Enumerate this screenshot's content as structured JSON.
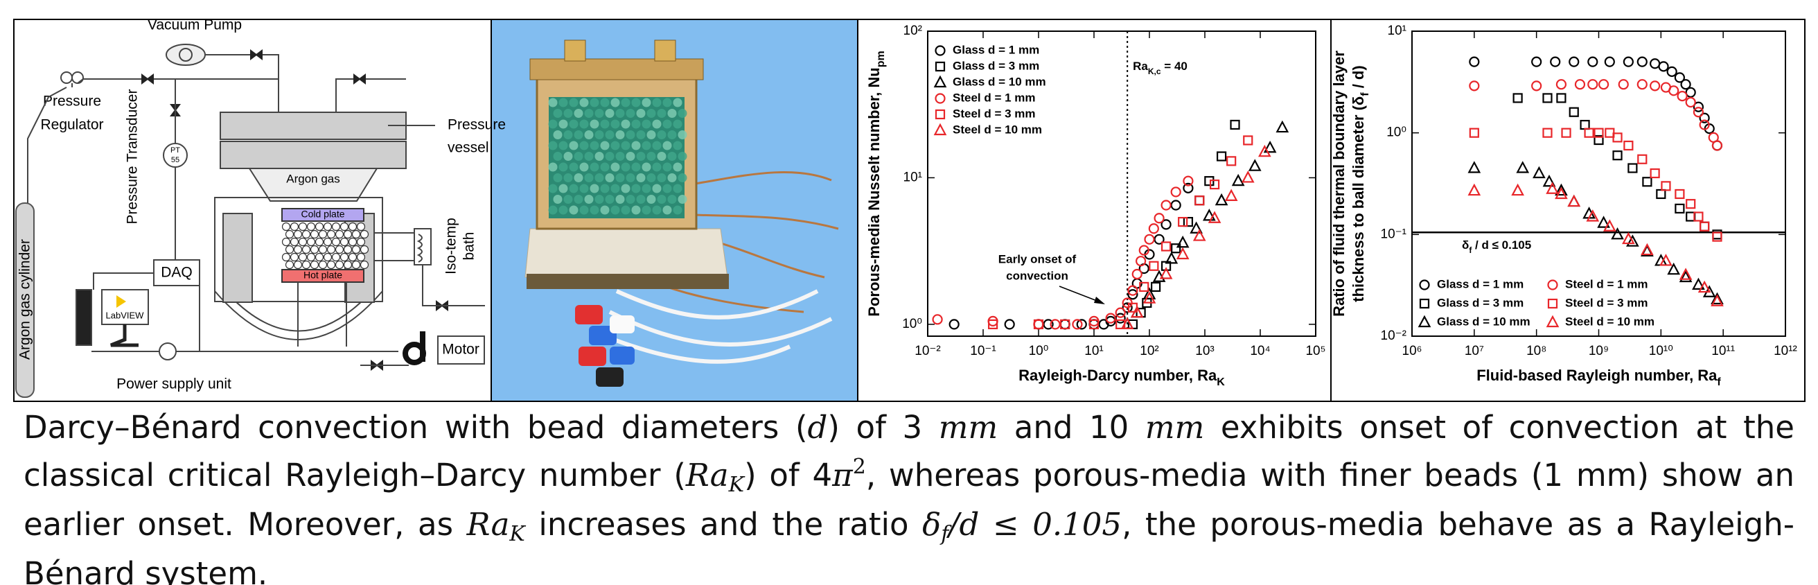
{
  "diagram": {
    "vacuum_pump": "Vacuum Pump",
    "pressure_regulator": [
      "Pressure",
      "Regulator"
    ],
    "pressure_transducer": "Pressure Transducer",
    "pt": [
      "PT",
      "55"
    ],
    "pressure_vessel": [
      "Pressure",
      "vessel"
    ],
    "argon_gas": "Argon gas",
    "cold_plate": "Cold plate",
    "hot_plate": "Hot plate",
    "iso_temp_bath": [
      "Iso-temp",
      "bath"
    ],
    "daq": "DAQ",
    "labview": "LabVIEW",
    "motor": "Motor",
    "power_supply": "Power supply unit",
    "argon_cylinder": "Argon gas cylinder"
  },
  "chart_data": [
    {
      "type": "scatter",
      "xscale": "log",
      "yscale": "log",
      "xlabel": [
        [
          {
            "text": "Rayleigh-Darcy number, Ra"
          },
          {
            "text": "K",
            "style": "sub"
          }
        ]
      ],
      "ylabel": [
        [
          {
            "text": "Porous-media Nusselt number, Nu"
          },
          {
            "text": "pm",
            "style": "sub"
          }
        ]
      ],
      "xlim": [
        0.01,
        100000
      ],
      "ylim": [
        0.83,
        100
      ],
      "xticks": [
        {
          "value": 0.01,
          "label": "10⁻²"
        },
        {
          "value": 0.1,
          "label": "10⁻¹"
        },
        {
          "value": 1,
          "label": "10⁰"
        },
        {
          "value": 10,
          "label": "10¹"
        },
        {
          "value": 100,
          "label": "10²"
        },
        {
          "value": 1000,
          "label": "10³"
        },
        {
          "value": 10000,
          "label": "10⁴"
        },
        {
          "value": 100000,
          "label": "10⁵"
        }
      ],
      "yticks": [
        {
          "value": 1,
          "label": "10⁰"
        },
        {
          "value": 10,
          "label": "10¹"
        },
        {
          "value": 100,
          "label": "10²"
        }
      ],
      "legend": "upper left",
      "legend_columns": 1,
      "vline": {
        "value": 40,
        "label": [
          {
            "text": "Ra"
          },
          {
            "text": "K,c",
            "style": "sub"
          },
          {
            "text": " = 40"
          }
        ]
      },
      "annotation": [
        "Early onset of",
        "convection"
      ],
      "series": [
        {
          "name": "Glass d = 1 mm",
          "color": "#000000",
          "marker": "circle",
          "x": [
            0.03,
            0.3,
            1,
            1.5,
            3,
            6,
            10,
            15,
            20,
            30,
            40,
            50,
            60,
            80,
            100,
            150,
            200,
            300,
            500
          ],
          "values": [
            1.0,
            1.0,
            1.0,
            1.0,
            1.0,
            1.0,
            1.0,
            1.0,
            1.05,
            1.1,
            1.3,
            1.6,
            1.9,
            2.4,
            3.0,
            3.8,
            4.8,
            6.5,
            8.5
          ]
        },
        {
          "name": "Glass d = 3 mm",
          "color": "#000000",
          "marker": "square",
          "x": [
            50,
            70,
            90,
            130,
            200,
            300,
            500,
            800,
            1200,
            2000,
            3500
          ],
          "values": [
            1.0,
            1.2,
            1.4,
            1.8,
            2.5,
            3.3,
            5,
            7,
            9.5,
            14,
            23
          ]
        },
        {
          "name": "Glass d = 10 mm",
          "color": "#000000",
          "marker": "triangle",
          "x": [
            40,
            60,
            100,
            150,
            250,
            400,
            700,
            1200,
            2000,
            4000,
            8000,
            15000,
            25000
          ],
          "values": [
            1.0,
            1.2,
            1.6,
            2.1,
            2.8,
            3.6,
            4.5,
            5.5,
            7,
            9.5,
            12,
            16,
            22
          ]
        },
        {
          "name": "Steel d = 1 mm",
          "color": "#e8262a",
          "marker": "circle",
          "x": [
            0.015,
            0.15,
            1,
            2,
            5,
            10,
            20,
            30,
            40,
            50,
            60,
            70,
            80,
            100,
            120,
            150,
            200,
            300,
            500
          ],
          "values": [
            1.08,
            1.05,
            1.0,
            1.0,
            1.0,
            1.05,
            1.1,
            1.2,
            1.4,
            1.7,
            2.2,
            2.7,
            3.2,
            3.8,
            4.5,
            5.3,
            6.5,
            8,
            9.5
          ]
        },
        {
          "name": "Steel d = 3 mm",
          "color": "#e8262a",
          "marker": "square",
          "x": [
            0.15,
            1,
            3,
            10,
            30,
            50,
            80,
            120,
            200,
            400,
            800,
            1500,
            3000,
            6000
          ],
          "values": [
            1.0,
            1.0,
            1.0,
            1.0,
            1.0,
            1.3,
            1.8,
            2.5,
            3.4,
            5,
            7,
            9,
            13,
            18
          ]
        },
        {
          "name": "Steel d = 10 mm",
          "color": "#e8262a",
          "marker": "triangle",
          "x": [
            40,
            60,
            100,
            200,
            400,
            800,
            1500,
            3000,
            6000,
            12000
          ],
          "values": [
            1.0,
            1.2,
            1.5,
            2.2,
            3,
            4,
            5.3,
            7.5,
            10,
            15
          ]
        }
      ]
    },
    {
      "type": "scatter",
      "xscale": "log",
      "yscale": "log",
      "xlabel": [
        [
          {
            "text": "Fluid-based Rayleigh number, Ra"
          },
          {
            "text": "f",
            "style": "sub"
          }
        ]
      ],
      "ylabel": [
        [
          {
            "text": "Ratio of fluid thermal boundary layer"
          }
        ],
        [
          {
            "text": "thickness to ball diameter (δ"
          },
          {
            "text": "f",
            "style": "sub"
          },
          {
            "text": " / d)"
          }
        ]
      ],
      "xlim": [
        1000000.0,
        1000000000000.0
      ],
      "ylim": [
        0.01,
        10
      ],
      "xticks": [
        {
          "value": 1000000.0,
          "label": "10⁶"
        },
        {
          "value": 10000000.0,
          "label": "10⁷"
        },
        {
          "value": 100000000.0,
          "label": "10⁸"
        },
        {
          "value": 1000000000.0,
          "label": "10⁹"
        },
        {
          "value": 10000000000.0,
          "label": "10¹⁰"
        },
        {
          "value": 100000000000.0,
          "label": "10¹¹"
        },
        {
          "value": 1000000000000.0,
          "label": "10¹²"
        }
      ],
      "yticks": [
        {
          "value": 0.01,
          "label": "10⁻²"
        },
        {
          "value": 0.1,
          "label": "10⁻¹"
        },
        {
          "value": 1,
          "label": "10⁰"
        },
        {
          "value": 10,
          "label": "10¹"
        }
      ],
      "legend": "lower left",
      "legend_columns": 2,
      "hline": {
        "value": 0.105,
        "label": [
          {
            "text": "δ"
          },
          {
            "text": "f",
            "style": "sub"
          },
          {
            "text": " / d ≤ 0.105"
          }
        ]
      },
      "series": [
        {
          "name": "Glass d = 1 mm",
          "color": "#000000",
          "marker": "circle",
          "x": [
            10000000.0,
            100000000.0,
            200000000.0,
            400000000.0,
            800000000.0,
            1500000000.0,
            3000000000.0,
            5000000000.0,
            8000000000.0,
            11000000000.0,
            15000000000.0,
            20000000000.0,
            25000000000.0,
            30000000000.0,
            40000000000.0,
            50000000000.0,
            60000000000.0,
            80000000000.0
          ],
          "values": [
            5,
            5,
            5,
            5,
            5,
            5,
            5,
            5,
            4.8,
            4.5,
            4,
            3.5,
            3,
            2.5,
            1.8,
            1.4,
            1.1,
            0.75
          ]
        },
        {
          "name": "Glass d = 3 mm",
          "color": "#000000",
          "marker": "square",
          "x": [
            50000000.0,
            150000000.0,
            250000000.0,
            400000000.0,
            600000000.0,
            1000000000.0,
            2000000000.0,
            3500000000.0,
            6000000000.0,
            10000000000.0,
            20000000000.0,
            30000000000.0,
            50000000000.0,
            80000000000.0
          ],
          "values": [
            2.2,
            2.2,
            2.2,
            1.6,
            1.2,
            0.85,
            0.6,
            0.45,
            0.33,
            0.25,
            0.18,
            0.15,
            0.12,
            0.1
          ]
        },
        {
          "name": "Glass d = 10 mm",
          "color": "#000000",
          "marker": "triangle",
          "x": [
            10000000.0,
            60000000.0,
            110000000.0,
            160000000.0,
            250000000.0,
            400000000.0,
            700000000.0,
            1200000000.0,
            2000000000.0,
            3500000000.0,
            6000000000.0,
            10000000000.0,
            16000000000.0,
            25000000000.0,
            40000000000.0,
            60000000000.0,
            80000000000.0
          ],
          "values": [
            0.45,
            0.45,
            0.4,
            0.33,
            0.27,
            0.21,
            0.16,
            0.13,
            0.1,
            0.085,
            0.068,
            0.055,
            0.045,
            0.038,
            0.032,
            0.027,
            0.023
          ]
        },
        {
          "name": "Steel d = 1 mm",
          "color": "#e8262a",
          "marker": "circle",
          "x": [
            10000000.0,
            100000000.0,
            250000000.0,
            500000000.0,
            800000000.0,
            1200000000.0,
            2500000000.0,
            5000000000.0,
            8000000000.0,
            12000000000.0,
            16000000000.0,
            22000000000.0,
            30000000000.0,
            40000000000.0,
            50000000000.0,
            70000000000.0,
            80000000000.0
          ],
          "values": [
            2.9,
            2.9,
            3.0,
            3.0,
            3.0,
            3.0,
            3.0,
            3.0,
            2.9,
            2.8,
            2.6,
            2.3,
            2.0,
            1.6,
            1.2,
            0.9,
            0.75
          ]
        },
        {
          "name": "Steel d = 3 mm",
          "color": "#e8262a",
          "marker": "square",
          "x": [
            10000000.0,
            150000000.0,
            300000000.0,
            700000000.0,
            1000000000.0,
            1500000000.0,
            2000000000.0,
            3000000000.0,
            5000000000.0,
            8000000000.0,
            12000000000.0,
            20000000000.0,
            30000000000.0,
            40000000000.0,
            50000000000.0,
            80000000000.0
          ],
          "values": [
            1.0,
            1.0,
            1.0,
            1.0,
            1.0,
            1.0,
            0.9,
            0.75,
            0.55,
            0.4,
            0.3,
            0.25,
            0.2,
            0.15,
            0.12,
            0.095
          ]
        },
        {
          "name": "Steel d = 10 mm",
          "color": "#e8262a",
          "marker": "triangle",
          "x": [
            10000000.0,
            50000000.0,
            180000000.0,
            250000000.0,
            400000000.0,
            800000000.0,
            1500000000.0,
            3000000000.0,
            6000000000.0,
            12000000000.0,
            25000000000.0,
            50000000000.0,
            80000000000.0
          ],
          "values": [
            0.27,
            0.27,
            0.28,
            0.25,
            0.21,
            0.15,
            0.12,
            0.09,
            0.07,
            0.055,
            0.04,
            0.03,
            0.022
          ]
        }
      ]
    }
  ],
  "caption": [
    {
      "text": "Darcy–Bénard convection with bead diameters (",
      "style": "text"
    },
    {
      "text": "d",
      "style": "math"
    },
    {
      "text": ") of 3 ",
      "style": "text"
    },
    {
      "text": "mm",
      "style": "math"
    },
    {
      "text": " and 10 ",
      "style": "text"
    },
    {
      "text": "mm",
      "style": "math"
    },
    {
      "text": " exhibits onset of convection at the classical critical Rayleigh–Darcy number (",
      "style": "text"
    },
    {
      "text": "Ra",
      "style": "math"
    },
    {
      "text": "K",
      "style": "sub"
    },
    {
      "text": ") of 4",
      "style": "text"
    },
    {
      "text": "π",
      "style": "math"
    },
    {
      "text": "2",
      "style": "sup"
    },
    {
      "text": ", whereas porous-media with finer beads (1 mm) show an earlier onset. Moreover, as ",
      "style": "text"
    },
    {
      "text": "Ra",
      "style": "math"
    },
    {
      "text": "K",
      "style": "sub"
    },
    {
      "text": " increases and the ratio ",
      "style": "text"
    },
    {
      "text": "δ",
      "style": "math"
    },
    {
      "text": "f",
      "style": "sub"
    },
    {
      "text": "/d ≤ 0.105",
      "style": "math"
    },
    {
      "text": ", the porous-media behave as a Rayleigh-Bénard system.",
      "style": "text"
    }
  ]
}
